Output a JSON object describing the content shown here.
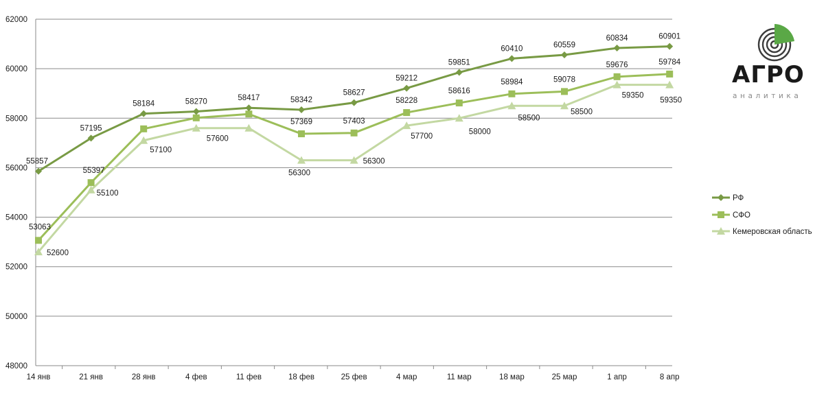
{
  "brand": {
    "word": "АГРО",
    "sub": "аналитика",
    "colors": {
      "green": "#5aa846",
      "gray": "#8a8a8a",
      "dark": "#333333"
    }
  },
  "chart_data": {
    "type": "line",
    "title": "",
    "xlabel": "",
    "ylabel": "",
    "categories": [
      "14 янв",
      "21 янв",
      "28 янв",
      "4 фев",
      "11 фев",
      "18 фев",
      "25 фев",
      "4 мар",
      "11 мар",
      "18 мар",
      "25 мар",
      "1 апр",
      "8 апр"
    ],
    "ylim": [
      48000,
      62000
    ],
    "yticks": [
      48000,
      50000,
      52000,
      54000,
      56000,
      58000,
      60000,
      62000
    ],
    "grid": true,
    "legend_position": "right",
    "series": [
      {
        "name": "РФ",
        "marker": "diamond",
        "color": "#789a44",
        "values": [
          55857,
          57195,
          58184,
          58270,
          58417,
          58342,
          58627,
          59212,
          59851,
          60410,
          60559,
          60834,
          60901
        ]
      },
      {
        "name": "СФО",
        "marker": "square",
        "color": "#9cbe59",
        "values": [
          53063,
          55397,
          57569,
          58014,
          58168,
          57369,
          57403,
          58228,
          58616,
          58984,
          59078,
          59676,
          59784
        ]
      },
      {
        "name": "Кемеровская область",
        "marker": "triangle",
        "color": "#c3d8a2",
        "values": [
          52600,
          55100,
          57100,
          57600,
          57600,
          56300,
          56300,
          57700,
          58000,
          58500,
          58500,
          59350,
          59350
        ]
      }
    ],
    "data_labels": [
      {
        "series": 0,
        "labels": [
          {
            "i": 0,
            "text": "55857"
          },
          {
            "i": 1,
            "text": "57195"
          },
          {
            "i": 2,
            "text": "58184"
          },
          {
            "i": 3,
            "text": "58270"
          },
          {
            "i": 4,
            "text": "58417"
          },
          {
            "i": 5,
            "text": "58342"
          },
          {
            "i": 6,
            "text": "58627"
          },
          {
            "i": 7,
            "text": "59212"
          },
          {
            "i": 8,
            "text": "59851"
          },
          {
            "i": 9,
            "text": "60410"
          },
          {
            "i": 10,
            "text": "60559"
          },
          {
            "i": 11,
            "text": "60834"
          },
          {
            "i": 12,
            "text": "60901"
          }
        ]
      },
      {
        "series": 1,
        "labels": [
          {
            "i": 0,
            "text": "53063"
          },
          {
            "i": 1,
            "text": "55397"
          },
          {
            "i": 5,
            "text": "57369"
          },
          {
            "i": 6,
            "text": "57403"
          },
          {
            "i": 7,
            "text": "58228"
          },
          {
            "i": 8,
            "text": "58616"
          },
          {
            "i": 9,
            "text": "58984"
          },
          {
            "i": 10,
            "text": "59078"
          },
          {
            "i": 11,
            "text": "59676"
          },
          {
            "i": 12,
            "text": "59784"
          }
        ]
      },
      {
        "series": 2,
        "labels": [
          {
            "i": 0,
            "text": "52600"
          },
          {
            "i": 1,
            "text": "55100"
          },
          {
            "i": 2,
            "text": "57100"
          },
          {
            "i": 3,
            "text": "57600"
          },
          {
            "i": 5,
            "text": "56300"
          },
          {
            "i": 6,
            "text": "56300"
          },
          {
            "i": 7,
            "text": "57700"
          },
          {
            "i": 8,
            "text": "58000"
          },
          {
            "i": 9,
            "text": "58500"
          },
          {
            "i": 10,
            "text": "58500"
          },
          {
            "i": 11,
            "text": "59350"
          },
          {
            "i": 12,
            "text": "59350"
          }
        ]
      }
    ]
  }
}
